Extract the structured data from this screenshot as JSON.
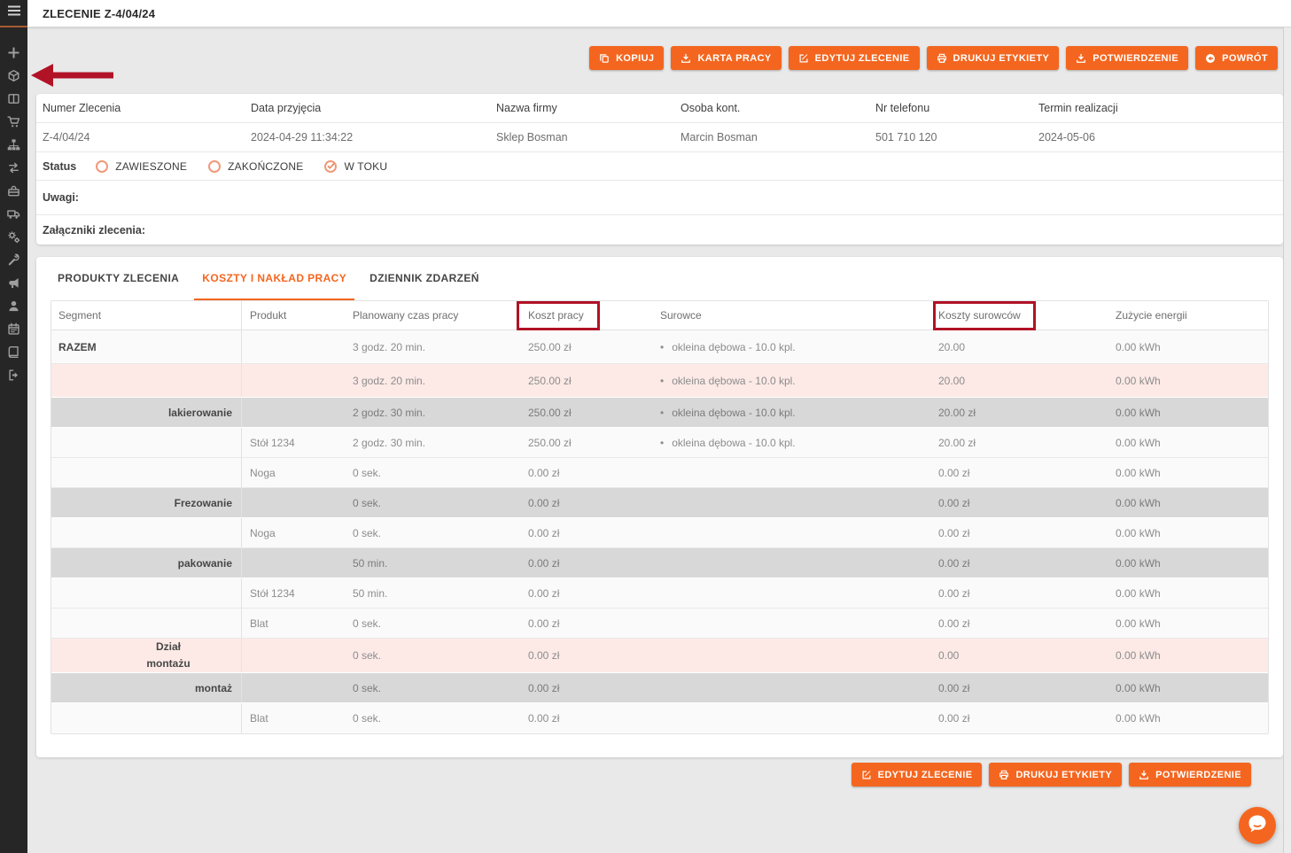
{
  "header": {
    "title": "ZLECENIE Z-4/04/24"
  },
  "sidebar": {
    "icons": [
      "plus",
      "cube",
      "columns",
      "cart",
      "sitemap",
      "exchange",
      "toolbox",
      "truck",
      "cogs",
      "wrench",
      "megaphone",
      "user",
      "calendar",
      "book",
      "signout"
    ]
  },
  "top_buttons": [
    {
      "label": "KOPIUJ",
      "icon": "copy"
    },
    {
      "label": "KARTA PRACY",
      "icon": "download"
    },
    {
      "label": "EDYTUJ ZLECENIE",
      "icon": "edit"
    },
    {
      "label": "DRUKUJ ETYKIETY",
      "icon": "print"
    },
    {
      "label": "POTWIERDZENIE",
      "icon": "download"
    },
    {
      "label": "POWRÓT",
      "icon": "back"
    }
  ],
  "order_info": {
    "fields": [
      {
        "label": "Numer Zlecenia",
        "value": "Z-4/04/24"
      },
      {
        "label": "Data przyjęcia",
        "value": "2024-04-29 11:34:22"
      },
      {
        "label": "Nazwa firmy",
        "value": "Sklep Bosman"
      },
      {
        "label": "Osoba kont.",
        "value": "Marcin Bosman"
      },
      {
        "label": "Nr telefonu",
        "value": "501 710 120"
      },
      {
        "label": "Termin realizacji",
        "value": "2024-05-06"
      }
    ]
  },
  "status": {
    "label": "Status",
    "options": [
      {
        "label": "ZAWIESZONE",
        "checked": false
      },
      {
        "label": "ZAKOŃCZONE",
        "checked": false
      },
      {
        "label": "W TOKU",
        "checked": true
      }
    ]
  },
  "notes_label": "Uwagi:",
  "attachments_label": "Załączniki zlecenia:",
  "tabs": [
    {
      "label": "PRODUKTY ZLECENIA",
      "active": false
    },
    {
      "label": "KOSZTY I NAKŁAD PRACY",
      "active": true
    },
    {
      "label": "DZIENNIK ZDARZEŃ",
      "active": false
    }
  ],
  "table": {
    "headers": [
      {
        "label": "Segment"
      },
      {
        "label": "Produkt"
      },
      {
        "label": "Planowany czas pracy"
      },
      {
        "label": "Koszt pracy",
        "boxed": true
      },
      {
        "label": "Surowce"
      },
      {
        "label": "Koszty surowców",
        "boxed": true
      },
      {
        "label": "Zużycie energii"
      }
    ],
    "rows": [
      {
        "level": "total",
        "segment": "RAZEM",
        "produkt": "",
        "czas": "3 godz. 20 min.",
        "koszt": "250.00 zł",
        "surowce": "okleina dębowa - 10.0 kpl.",
        "koszty": "20.00",
        "energia": "0.00 kWh"
      },
      {
        "level": "dept",
        "segment": "",
        "produkt": "",
        "czas": "3 godz. 20 min.",
        "koszt": "250.00 zł",
        "surowce": "okleina dębowa - 10.0 kpl.",
        "koszty": "20.00",
        "energia": "0.00 kWh"
      },
      {
        "level": "segment",
        "segment": "lakierowanie",
        "produkt": "",
        "czas": "2 godz. 30 min.",
        "koszt": "250.00 zł",
        "surowce": "okleina dębowa - 10.0 kpl.",
        "koszty": "20.00 zł",
        "energia": "0.00 kWh"
      },
      {
        "level": "product",
        "segment": "",
        "produkt": "Stół 1234",
        "czas": "2 godz. 30 min.",
        "koszt": "250.00 zł",
        "surowce": "okleina dębowa - 10.0 kpl.",
        "koszty": "20.00 zł",
        "energia": "0.00 kWh"
      },
      {
        "level": "product",
        "segment": "",
        "produkt": "Noga",
        "czas": "0 sek.",
        "koszt": "0.00 zł",
        "surowce": "",
        "koszty": "0.00 zł",
        "energia": "0.00 kWh"
      },
      {
        "level": "segment",
        "segment": "Frezowanie",
        "produkt": "",
        "czas": "0 sek.",
        "koszt": "0.00 zł",
        "surowce": "",
        "koszty": "0.00 zł",
        "energia": "0.00 kWh"
      },
      {
        "level": "product",
        "segment": "",
        "produkt": "Noga",
        "czas": "0 sek.",
        "koszt": "0.00 zł",
        "surowce": "",
        "koszty": "0.00 zł",
        "energia": "0.00 kWh"
      },
      {
        "level": "segment",
        "segment": "pakowanie",
        "produkt": "",
        "czas": "50 min.",
        "koszt": "0.00 zł",
        "surowce": "",
        "koszty": "0.00 zł",
        "energia": "0.00 kWh"
      },
      {
        "level": "product",
        "segment": "",
        "produkt": "Stół 1234",
        "czas": "50 min.",
        "koszt": "0.00 zł",
        "surowce": "",
        "koszty": "0.00 zł",
        "energia": "0.00 kWh"
      },
      {
        "level": "product",
        "segment": "",
        "produkt": "Blat",
        "czas": "0 sek.",
        "koszt": "0.00 zł",
        "surowce": "",
        "koszty": "0.00 zł",
        "energia": "0.00 kWh"
      },
      {
        "level": "dept",
        "segment": "Dział montażu",
        "produkt": "",
        "czas": "0 sek.",
        "koszt": "0.00 zł",
        "surowce": "",
        "koszty": "0.00",
        "energia": "0.00 kWh"
      },
      {
        "level": "segment",
        "segment": "montaż",
        "produkt": "",
        "czas": "0 sek.",
        "koszt": "0.00 zł",
        "surowce": "",
        "koszty": "0.00 zł",
        "energia": "0.00 kWh"
      },
      {
        "level": "product",
        "segment": "",
        "produkt": "Blat",
        "czas": "0 sek.",
        "koszt": "0.00 zł",
        "surowce": "",
        "koszty": "0.00 zł",
        "energia": "0.00 kWh"
      }
    ]
  },
  "bottom_buttons": [
    {
      "label": "EDYTUJ ZLECENIE",
      "icon": "edit"
    },
    {
      "label": "DRUKUJ ETYKIETY",
      "icon": "print"
    },
    {
      "label": "POTWIERDZENIE",
      "icon": "download"
    }
  ],
  "annotations": {
    "color": "#b11226",
    "boxed_headers": [
      "Koszt pracy",
      "Koszty surowców"
    ],
    "arrow_points_to": "cube-icon"
  },
  "colors": {
    "accent": "#f4661f",
    "sidebar_bg": "#262626",
    "row_pink": "#fdeae7",
    "row_gray": "#d8d8d8",
    "annotation_red": "#b11226"
  }
}
